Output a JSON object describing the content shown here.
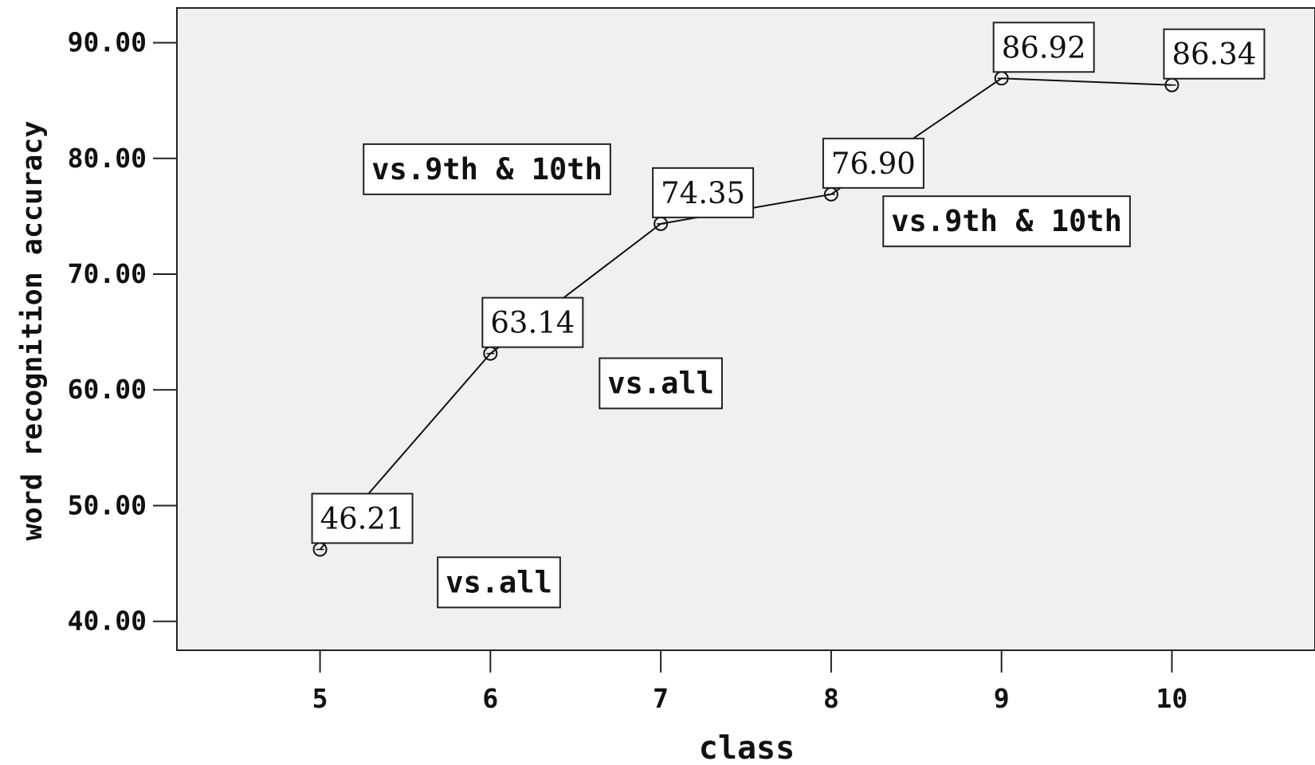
{
  "chart_data": {
    "type": "line",
    "xlabel": "class",
    "ylabel": "word recognition accuracy",
    "x": [
      5,
      6,
      7,
      8,
      9,
      10
    ],
    "values": [
      46.21,
      63.14,
      74.35,
      76.9,
      86.92,
      86.34
    ],
    "value_labels": [
      "46.21",
      "63.14",
      "74.35",
      "76.90",
      "86.92",
      "86.34"
    ],
    "x_tick_labels": [
      "5",
      "6",
      "7",
      "8",
      "9",
      "10"
    ],
    "y_tick_values": [
      40,
      50,
      60,
      70,
      80,
      90
    ],
    "y_tick_labels": [
      "40.00",
      "50.00",
      "60.00",
      "70.00",
      "80.00",
      "90.00"
    ],
    "xlim": [
      4.16,
      10.84
    ],
    "ylim": [
      37.5,
      93
    ],
    "grid": false,
    "legend": "none",
    "annotations": [
      {
        "text": "vs.all",
        "x": 6.05,
        "y": 43.4
      },
      {
        "text": "vs.all",
        "x": 7.0,
        "y": 60.6
      },
      {
        "text": "vs.9th & 10th",
        "x": 5.98,
        "y": 79.1
      },
      {
        "text": "vs.9th & 10th",
        "x": 9.03,
        "y": 74.6
      }
    ],
    "colors": {
      "plot_background": "#f0f0f0",
      "line": "#111111",
      "axis": "#222222"
    }
  }
}
